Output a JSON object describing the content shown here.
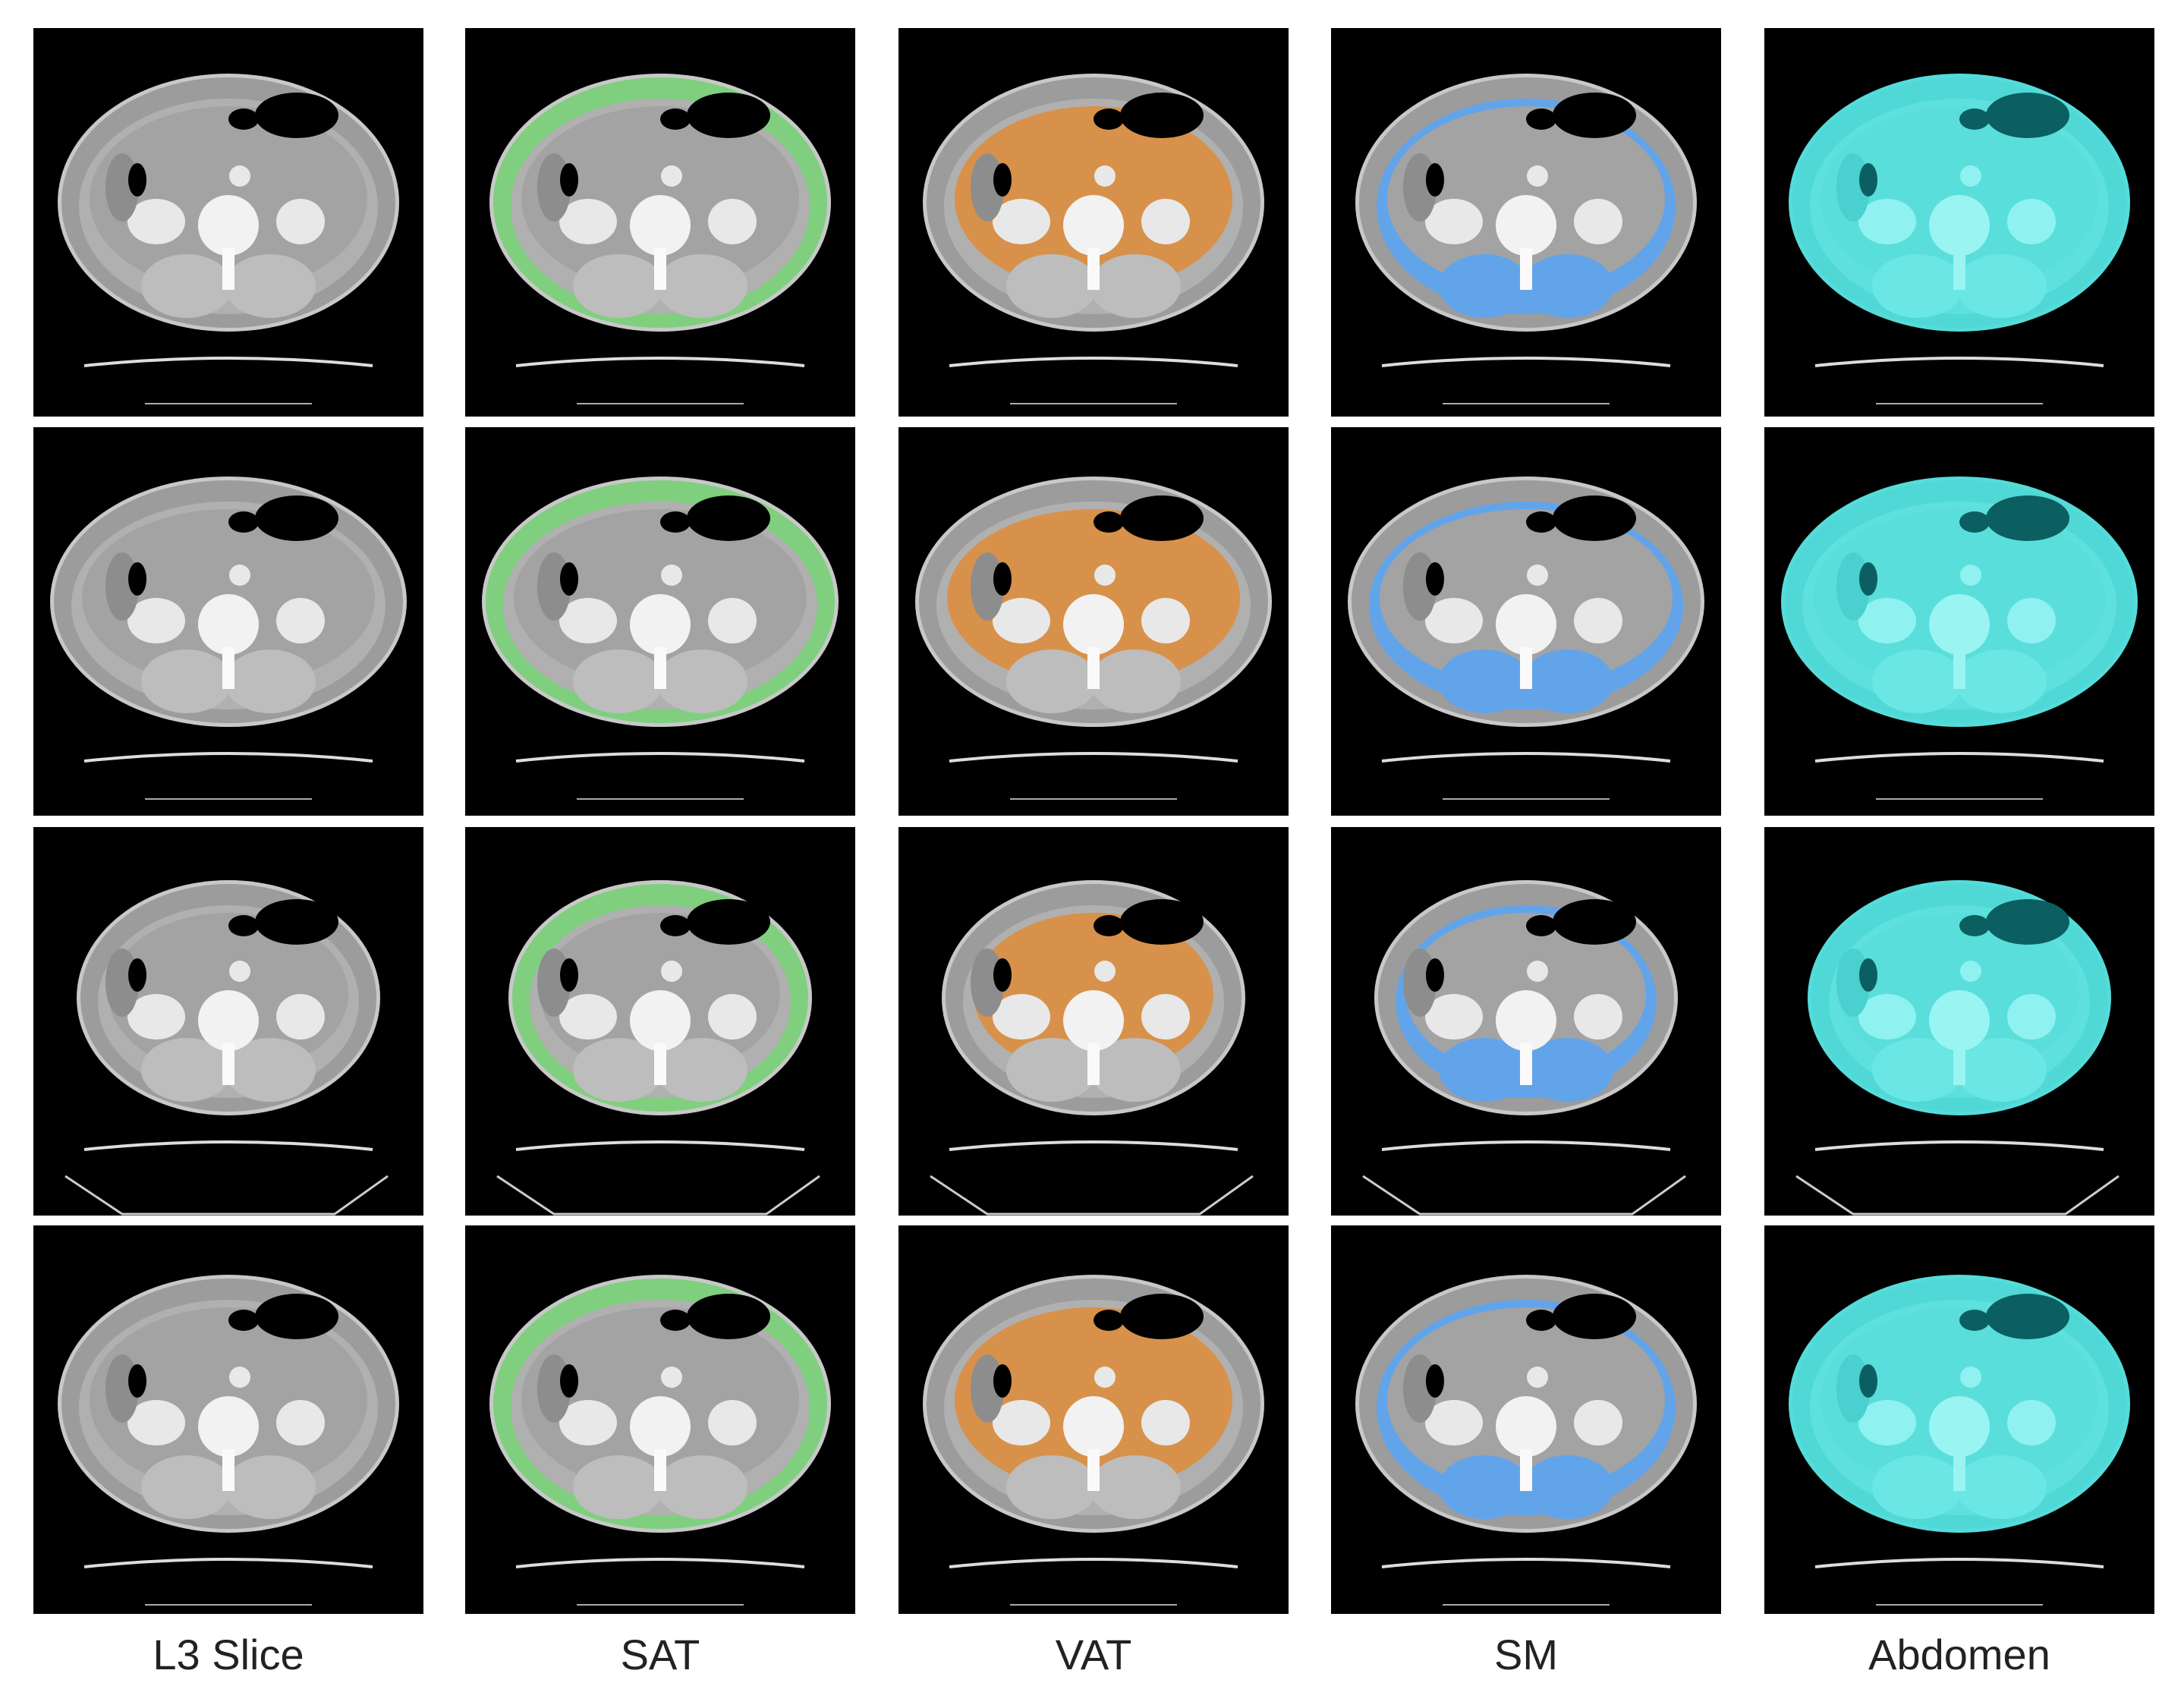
{
  "columns": [
    "L3 Slice",
    "SAT",
    "VAT",
    "SM",
    "Abdomen"
  ]
}
